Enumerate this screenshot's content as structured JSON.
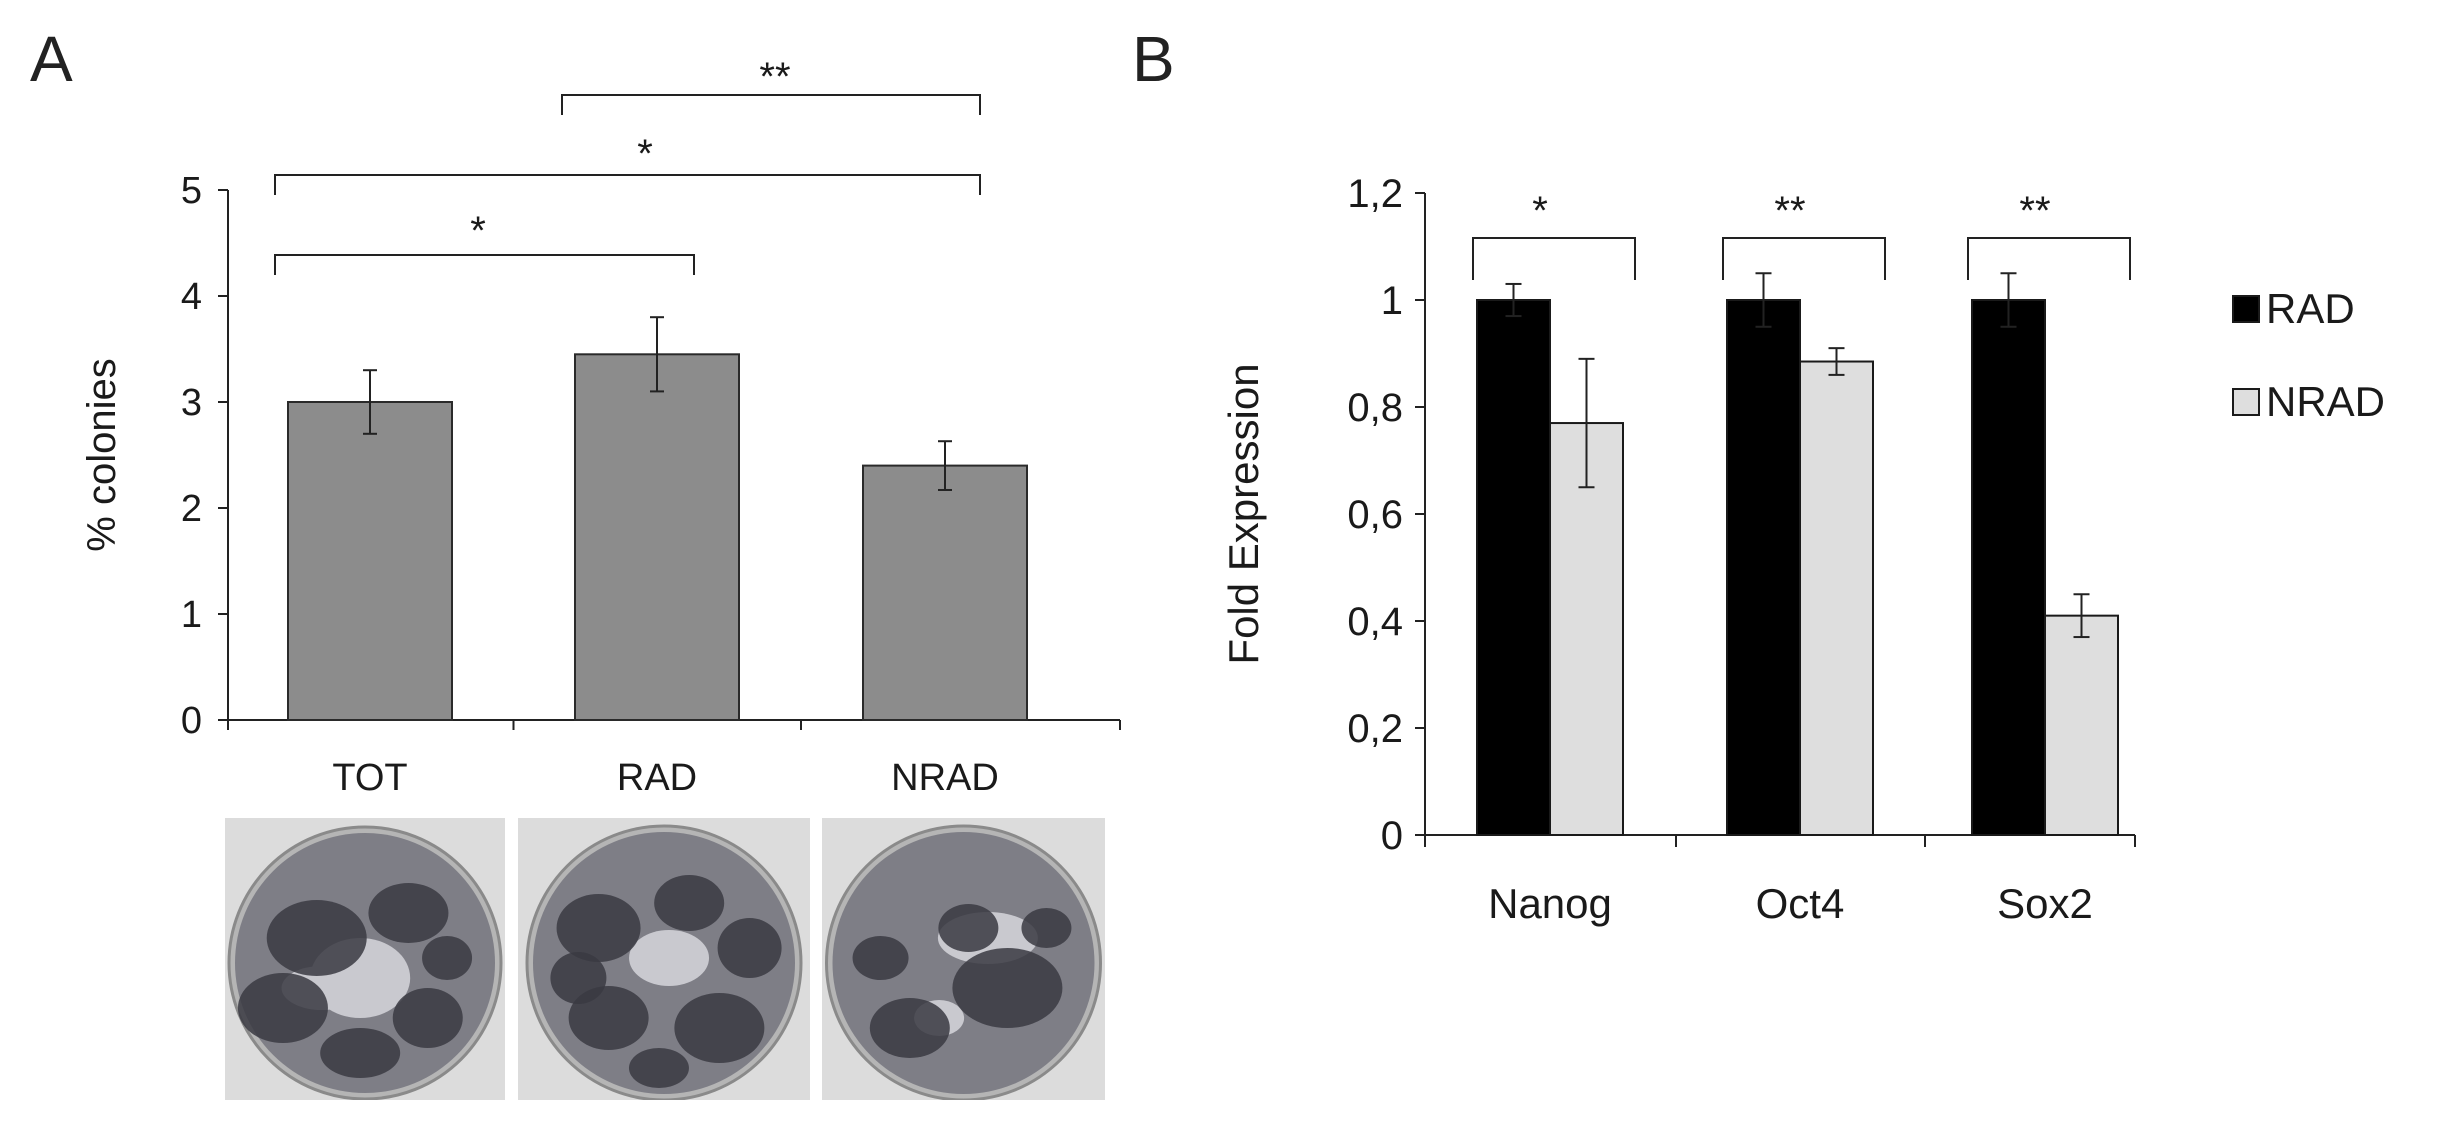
{
  "panels": {
    "a": {
      "label": "A"
    },
    "b": {
      "label": "B"
    }
  },
  "chart_data": [
    {
      "type": "bar",
      "panel": "A",
      "categories": [
        "TOT",
        "RAD",
        "NRAD"
      ],
      "values": [
        3.0,
        3.45,
        2.4
      ],
      "errors": [
        0.3,
        0.35,
        0.23
      ],
      "ylabel": "% colonies",
      "xlabel": "",
      "ylim": [
        0,
        5
      ],
      "yticks": [
        "0",
        "1",
        "2",
        "3",
        "4",
        "5"
      ],
      "bar_color": "#8c8c8c",
      "significance": [
        {
          "from": "TOT",
          "to": "RAD",
          "label": "*"
        },
        {
          "from": "TOT",
          "to": "NRAD",
          "label": "*"
        },
        {
          "from": "RAD",
          "to": "NRAD",
          "label": "**"
        }
      ],
      "plates": [
        {
          "name": "TOT"
        },
        {
          "name": "RAD"
        },
        {
          "name": "NRAD"
        }
      ]
    },
    {
      "type": "bar",
      "panel": "B",
      "categories": [
        "Nanog",
        "Oct4",
        "Sox2"
      ],
      "series": [
        {
          "name": "RAD",
          "values": [
            1.0,
            1.0,
            1.0
          ],
          "errors": [
            0.03,
            0.05,
            0.05
          ],
          "color": "#000000"
        },
        {
          "name": "NRAD",
          "values": [
            0.77,
            0.885,
            0.41
          ],
          "errors": [
            0.12,
            0.025,
            0.04
          ],
          "color": "#dedede"
        }
      ],
      "ylabel": "Fold Expression",
      "xlabel": "",
      "ylim": [
        0,
        1.2
      ],
      "yticks": [
        "0",
        "0,2",
        "0,4",
        "0,6",
        "0,8",
        "1",
        "1,2"
      ],
      "legend_position": "right",
      "significance": [
        {
          "category": "Nanog",
          "label": "*"
        },
        {
          "category": "Oct4",
          "label": "**"
        },
        {
          "category": "Sox2",
          "label": "**"
        }
      ]
    }
  ]
}
